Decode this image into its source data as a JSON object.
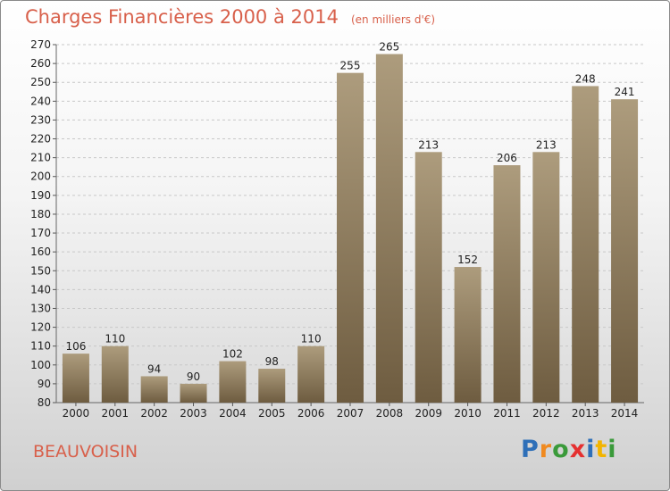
{
  "title": "Charges Financières 2000 à 2014",
  "subtitle": "(en milliers d'€)",
  "commune": "BEAUVOISIN",
  "logo": [
    "P",
    "r",
    "o",
    "x",
    "i",
    "t",
    "i"
  ],
  "colors": {
    "title": "#d8604b",
    "bar_top": "#ad9c7d",
    "bar_bottom": "#6e5c40",
    "grid": "#c8c8c8",
    "logo": [
      "#2e6fb8",
      "#f08a20",
      "#3a9a3a",
      "#e53030",
      "#2e6fb8",
      "#f2b400",
      "#3a9a3a"
    ]
  },
  "chart_data": {
    "type": "bar",
    "categories": [
      "2000",
      "2001",
      "2002",
      "2003",
      "2004",
      "2005",
      "2006",
      "2007",
      "2008",
      "2009",
      "2010",
      "2011",
      "2012",
      "2013",
      "2014"
    ],
    "values": [
      106,
      110,
      94,
      90,
      102,
      98,
      110,
      255,
      265,
      213,
      152,
      206,
      213,
      248,
      241
    ],
    "ylim": [
      80,
      270
    ],
    "yticks": [
      80,
      90,
      100,
      110,
      120,
      130,
      140,
      150,
      160,
      170,
      180,
      190,
      200,
      210,
      220,
      230,
      240,
      250,
      260,
      270
    ],
    "grid": true,
    "legend": "none"
  }
}
